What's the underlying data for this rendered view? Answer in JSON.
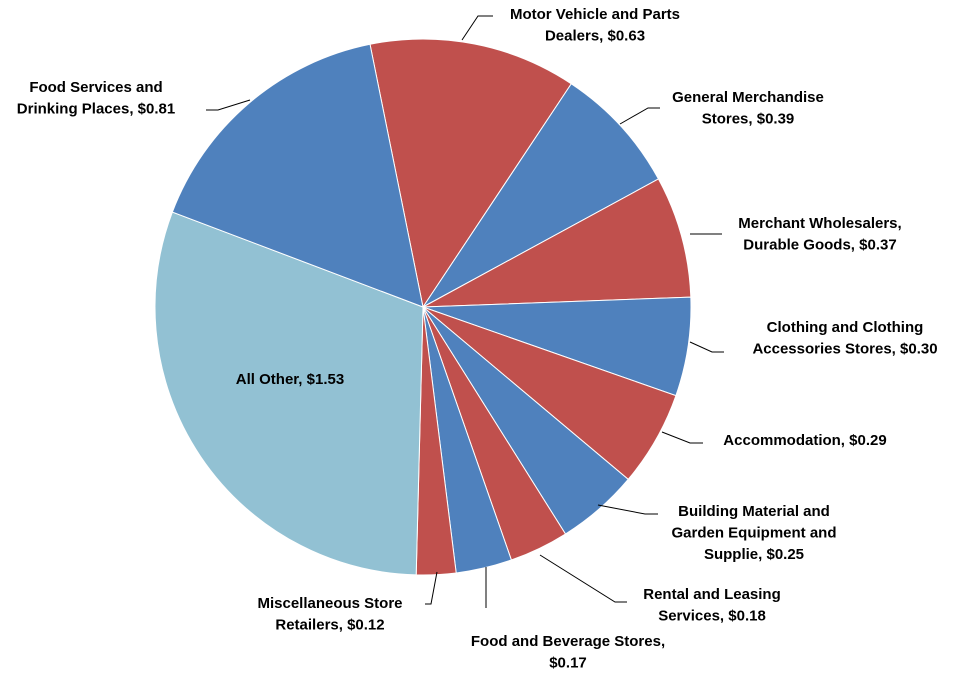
{
  "chart_data": {
    "type": "pie",
    "values": [
      0.63,
      0.39,
      0.37,
      0.3,
      0.29,
      0.25,
      0.18,
      0.17,
      0.12,
      1.53,
      0.81
    ],
    "value_labels": [
      [
        "Motor Vehicle and Parts",
        "Dealers, $0.63"
      ],
      [
        "General Merchandise",
        "Stores, $0.39"
      ],
      [
        "Merchant Wholesalers,",
        "Durable Goods, $0.37"
      ],
      [
        "Clothing and Clothing",
        "Accessories Stores, $0.30"
      ],
      [
        "Accommodation, $0.29"
      ],
      [
        "Building Material and",
        "Garden Equipment and",
        "Supplie, $0.25"
      ],
      [
        "Rental and Leasing",
        "Services, $0.18"
      ],
      [
        "Food and Beverage Stores,",
        "$0.17"
      ],
      [
        "Miscellaneous Store",
        "Retailers, $0.12"
      ],
      [
        "All Other, $1.53"
      ],
      [
        "Food Services and",
        "Drinking Places, $0.81"
      ]
    ],
    "colors": [
      "#c0504d",
      "#4f81bd",
      "#c0504d",
      "#4f81bd",
      "#c0504d",
      "#4f81bd",
      "#c0504d",
      "#4f81bd",
      "#c0504d",
      "#92c1d3",
      "#4f81bd"
    ]
  }
}
